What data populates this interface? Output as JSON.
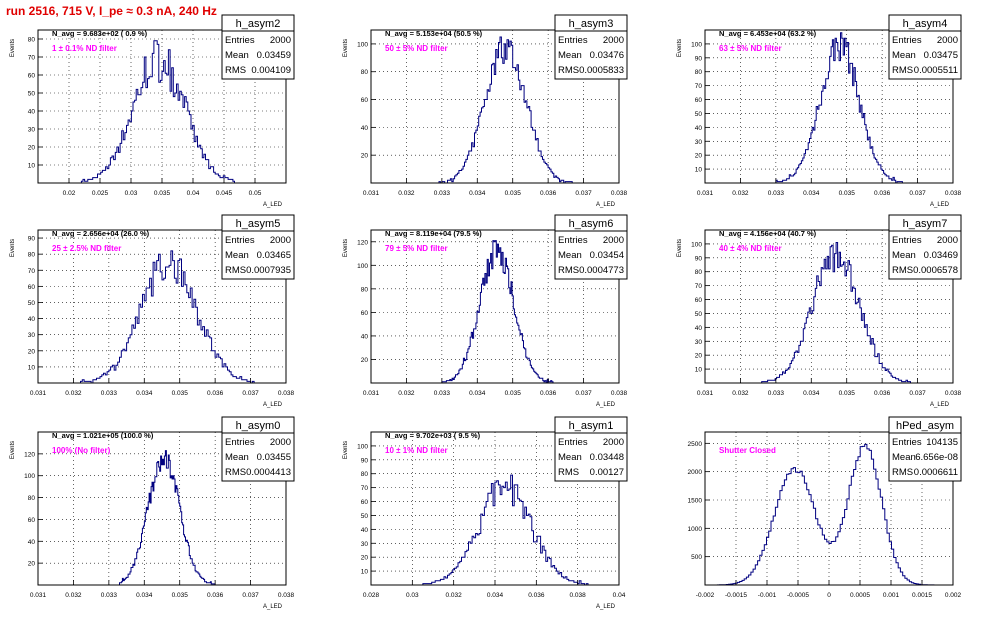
{
  "page_title": "run 2516,   715 V, I_pe ≈ 0.3 nA, 240 Hz",
  "stat_labels": {
    "entries": "Entries",
    "mean": "Mean",
    "rms": "RMS"
  },
  "colors": {
    "histogram": "#000080",
    "annotation": "#ff00ff",
    "title": "#e00000",
    "grid": "#000000"
  },
  "chart_data": [
    {
      "type": "histogram",
      "name": "h_asym2",
      "entries": "2000",
      "mean": "0.03459",
      "rms": "0.004109",
      "n_avg_label": "N_avg = 9.683e+02 ( 0.9 %)",
      "annotation": "1 ± 0.1% ND filter",
      "ylabel": "Events",
      "xlabel": "A_LED",
      "xlim": [
        0.015,
        0.055
      ],
      "ylim": [
        0,
        85
      ],
      "xticks": [
        0.02,
        0.025,
        0.03,
        0.035,
        0.04,
        0.045,
        0.05
      ],
      "xtick_labels": [
        "0.02",
        "0.025",
        "0.03",
        "0.035",
        "0.04",
        "0.045",
        "0.05"
      ],
      "yticks": [
        10,
        20,
        30,
        40,
        50,
        60,
        70,
        80
      ],
      "profile": {
        "shape": "gauss",
        "peaks": [
          [
            0.0345,
            0.0041,
            70
          ]
        ],
        "xmin": 0.022,
        "xmax": 0.048,
        "nbins": 100,
        "noise": 0.18
      }
    },
    {
      "type": "histogram",
      "name": "h_asym3",
      "entries": "2000",
      "mean": "0.03476",
      "rms": "0.0005833",
      "n_avg_label": "N_avg = 5.153e+04 (50.5 %)",
      "annotation": "50 ± 5% ND filter",
      "ylabel": "Events",
      "xlabel": "A_LED",
      "xlim": [
        0.031,
        0.038
      ],
      "ylim": [
        0,
        110
      ],
      "xticks": [
        0.031,
        0.032,
        0.033,
        0.034,
        0.035,
        0.036,
        0.037,
        0.038
      ],
      "xtick_labels": [
        "0.031",
        "0.032",
        "0.033",
        "0.034",
        "0.035",
        "0.036",
        "0.037",
        "0.038"
      ],
      "yticks": [
        20,
        40,
        60,
        80,
        100
      ],
      "profile": {
        "shape": "gauss",
        "peaks": [
          [
            0.0348,
            0.00058,
            98
          ]
        ],
        "xmin": 0.0328,
        "xmax": 0.0368,
        "nbins": 100,
        "noise": 0.12
      }
    },
    {
      "type": "histogram",
      "name": "h_asym4",
      "entries": "2000",
      "mean": "0.03475",
      "rms": "0.0005511",
      "n_avg_label": "N_avg = 6.453e+04 (63.2 %)",
      "annotation": "63 ± 5% ND filter",
      "ylabel": "Events",
      "xlabel": "A_LED",
      "xlim": [
        0.031,
        0.038
      ],
      "ylim": [
        0,
        110
      ],
      "xticks": [
        0.031,
        0.032,
        0.033,
        0.034,
        0.035,
        0.036,
        0.037,
        0.038
      ],
      "xtick_labels": [
        "0.031",
        "0.032",
        "0.033",
        "0.034",
        "0.035",
        "0.036",
        "0.037",
        "0.038"
      ],
      "yticks": [
        10,
        20,
        30,
        40,
        50,
        60,
        70,
        80,
        90,
        100
      ],
      "profile": {
        "shape": "gauss",
        "peaks": [
          [
            0.0348,
            0.00055,
            100
          ]
        ],
        "xmin": 0.033,
        "xmax": 0.0368,
        "nbins": 100,
        "noise": 0.12
      }
    },
    {
      "type": "histogram",
      "name": "h_asym5",
      "entries": "2000",
      "mean": "0.03465",
      "rms": "0.0007935",
      "n_avg_label": "N_avg = 2.656e+04 (26.0 %)",
      "annotation": "25 ± 2.5% ND filter",
      "ylabel": "Events",
      "xlabel": "A_LED",
      "xlim": [
        0.031,
        0.038
      ],
      "ylim": [
        0,
        95
      ],
      "xticks": [
        0.031,
        0.032,
        0.033,
        0.034,
        0.035,
        0.036,
        0.037,
        0.038
      ],
      "xtick_labels": [
        "0.031",
        "0.032",
        "0.033",
        "0.034",
        "0.035",
        "0.036",
        "0.037",
        "0.038"
      ],
      "yticks": [
        10,
        20,
        30,
        40,
        50,
        60,
        70,
        80,
        90
      ],
      "profile": {
        "shape": "gauss",
        "peaks": [
          [
            0.0347,
            0.00079,
            75
          ]
        ],
        "xmin": 0.0322,
        "xmax": 0.0372,
        "nbins": 100,
        "noise": 0.15
      }
    },
    {
      "type": "histogram",
      "name": "h_asym6",
      "entries": "2000",
      "mean": "0.03454",
      "rms": "0.0004773",
      "n_avg_label": "N_avg = 8.119e+04 (79.5 %)",
      "annotation": "79 ± 5% ND filter",
      "ylabel": "Events",
      "xlabel": "A_LED",
      "xlim": [
        0.031,
        0.038
      ],
      "ylim": [
        0,
        130
      ],
      "xticks": [
        0.031,
        0.032,
        0.033,
        0.034,
        0.035,
        0.036,
        0.037,
        0.038
      ],
      "xtick_labels": [
        "0.031",
        "0.032",
        "0.033",
        "0.034",
        "0.035",
        "0.036",
        "0.037",
        "0.038"
      ],
      "yticks": [
        20,
        40,
        60,
        80,
        100,
        120
      ],
      "profile": {
        "shape": "gauss",
        "peaks": [
          [
            0.03455,
            0.00048,
            112
          ]
        ],
        "xmin": 0.033,
        "xmax": 0.0362,
        "nbins": 100,
        "noise": 0.12
      }
    },
    {
      "type": "histogram",
      "name": "h_asym7",
      "entries": "2000",
      "mean": "0.03469",
      "rms": "0.0006578",
      "n_avg_label": "N_avg = 4.156e+04 (40.7 %)",
      "annotation": "40 ± 4% ND filter",
      "ylabel": "Events",
      "xlabel": "A_LED",
      "xlim": [
        0.031,
        0.038
      ],
      "ylim": [
        0,
        110
      ],
      "xticks": [
        0.031,
        0.032,
        0.033,
        0.034,
        0.035,
        0.036,
        0.037,
        0.038
      ],
      "xtick_labels": [
        "0.031",
        "0.032",
        "0.033",
        "0.034",
        "0.035",
        "0.036",
        "0.037",
        "0.038"
      ],
      "yticks": [
        10,
        20,
        30,
        40,
        50,
        60,
        70,
        80,
        90,
        100
      ],
      "profile": {
        "shape": "gauss",
        "peaks": [
          [
            0.0347,
            0.00066,
            92
          ]
        ],
        "xmin": 0.0326,
        "xmax": 0.0368,
        "nbins": 100,
        "noise": 0.13
      }
    },
    {
      "type": "histogram",
      "name": "h_asym0",
      "entries": "2000",
      "mean": "0.03455",
      "rms": "0.0004413",
      "n_avg_label": "N_avg = 1.021e+05 (100.0 %)",
      "annotation": "100% (No filter)",
      "ylabel": "Events",
      "xlabel": "A_LED",
      "xlim": [
        0.031,
        0.038
      ],
      "ylim": [
        0,
        140
      ],
      "xticks": [
        0.031,
        0.032,
        0.033,
        0.034,
        0.035,
        0.036,
        0.037,
        0.038
      ],
      "xtick_labels": [
        "0.031",
        "0.032",
        "0.033",
        "0.034",
        "0.035",
        "0.036",
        "0.037",
        "0.038"
      ],
      "yticks": [
        20,
        40,
        60,
        80,
        100,
        120
      ],
      "profile": {
        "shape": "gauss",
        "peaks": [
          [
            0.03455,
            0.00044,
            118
          ]
        ],
        "xmin": 0.0333,
        "xmax": 0.036,
        "nbins": 100,
        "noise": 0.1
      }
    },
    {
      "type": "histogram",
      "name": "h_asym1",
      "entries": "2000",
      "mean": "0.03448",
      "rms": "0.00127",
      "n_avg_label": "N_avg = 9.702e+03 ( 9.5 %)",
      "annotation": "10 ± 1% ND filter",
      "ylabel": "Events",
      "xlabel": "A_LED",
      "xlim": [
        0.028,
        0.04
      ],
      "ylim": [
        0,
        110
      ],
      "xticks": [
        0.028,
        0.03,
        0.032,
        0.034,
        0.036,
        0.038,
        0.04
      ],
      "xtick_labels": [
        "0.028",
        "0.03",
        "0.032",
        "0.034",
        "0.036",
        "0.038",
        "0.04"
      ],
      "yticks": [
        10,
        20,
        30,
        40,
        50,
        60,
        70,
        80,
        90,
        100
      ],
      "profile": {
        "shape": "gauss",
        "peaks": [
          [
            0.0345,
            0.00127,
            70
          ]
        ],
        "xmin": 0.03,
        "xmax": 0.0385,
        "nbins": 100,
        "noise": 0.18
      }
    },
    {
      "type": "histogram",
      "name": "hPed_asym",
      "entries": "104135",
      "mean": "6.656e-08",
      "rms": "0.0006611",
      "n_avg_label": "",
      "annotation": "Shutter Closed",
      "ylabel": "",
      "xlabel": "",
      "xlim": [
        -0.002,
        0.002
      ],
      "ylim": [
        0,
        2700
      ],
      "xticks": [
        -0.002,
        -0.0015,
        -0.001,
        -0.0005,
        0,
        0.0005,
        0.001,
        0.0015,
        0.002
      ],
      "xtick_labels": [
        "-0.002",
        "-0.0015",
        "-0.001",
        "-0.0005",
        "0",
        "0.0005",
        "0.001",
        "0.0015",
        "0.002"
      ],
      "yticks": [
        500,
        1000,
        1500,
        2000,
        2500
      ],
      "profile": {
        "shape": "bimodal",
        "peaks": [
          [
            -0.00055,
            0.00033,
            2050
          ],
          [
            0.00058,
            0.00027,
            2450
          ]
        ],
        "xmin": -0.0018,
        "xmax": 0.0018,
        "nbins": 100,
        "noise": 0.03
      }
    }
  ]
}
